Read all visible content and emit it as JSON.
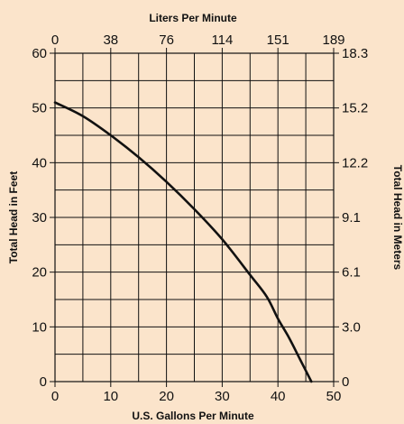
{
  "chart_data": {
    "type": "line",
    "title": "",
    "xlabel": "U.S. Gallons Per Minute",
    "ylabel": "Total Head in Feet",
    "x2label": "Liters Per Minute",
    "y2label": "Total Head in Meters",
    "xlim": [
      0,
      50
    ],
    "ylim": [
      0,
      60
    ],
    "x_ticks": [
      "0",
      "10",
      "20",
      "30",
      "40",
      "50"
    ],
    "y_ticks": [
      "0",
      "10",
      "20",
      "30",
      "40",
      "50",
      "60"
    ],
    "x2_ticks": [
      "0",
      "38",
      "76",
      "114",
      "151",
      "189"
    ],
    "y2_ticks": [
      "0",
      "3.0",
      "6.1",
      "9.1",
      "12.2",
      "15.2",
      "18.3"
    ],
    "grid": true,
    "series": [
      {
        "x": [
          0,
          5,
          10,
          15,
          20,
          25,
          30,
          35,
          38,
          40,
          42,
          44,
          46
        ],
        "y": [
          51,
          48.5,
          45,
          41,
          36.5,
          31.5,
          26,
          19.5,
          15.5,
          11.5,
          8,
          4,
          0
        ]
      }
    ]
  },
  "colors": {
    "background": "#fbe4cb",
    "grid": "#111111",
    "line": "#111111"
  }
}
